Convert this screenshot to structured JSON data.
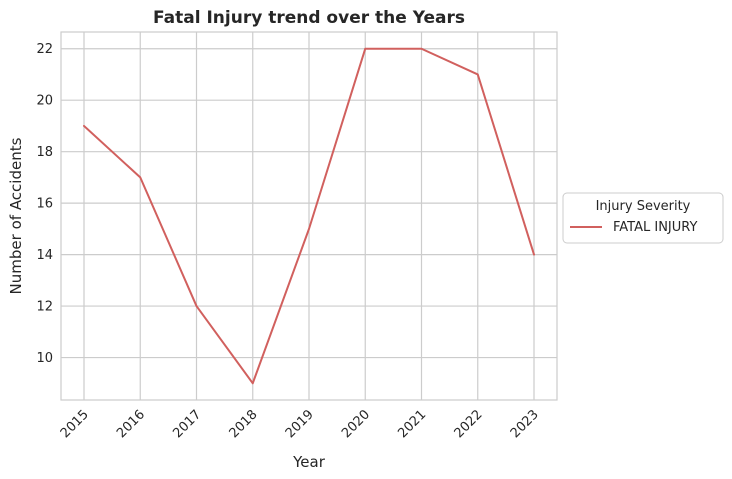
{
  "chart_data": {
    "type": "line",
    "title": "Fatal Injury trend over the Years",
    "xlabel": "Year",
    "ylabel": "Number of Accidents",
    "x": [
      "2015",
      "2016",
      "2017",
      "2018",
      "2019",
      "2020",
      "2021",
      "2022",
      "2023"
    ],
    "yticks": [
      "10",
      "12",
      "14",
      "16",
      "18",
      "20",
      "22"
    ],
    "ylim": [
      8.35,
      22.65
    ],
    "grid": true,
    "legend": {
      "title": "Injury Severity",
      "placement": "center-right-outside"
    },
    "series": [
      {
        "name": "FATAL INJURY",
        "color": "#d1605e",
        "values": [
          19,
          17,
          12,
          9,
          15,
          22,
          22,
          21,
          14
        ]
      }
    ]
  }
}
